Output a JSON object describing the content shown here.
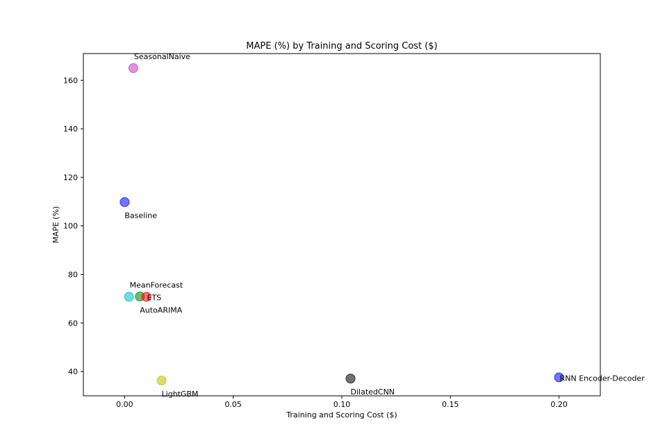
{
  "chart_data": {
    "type": "scatter",
    "title": "MAPE (%) by Training and Scoring Cost ($)",
    "xlabel": "Training and Scoring Cost ($)",
    "ylabel": "MAPE (%)",
    "xlim": [
      -0.019,
      0.219
    ],
    "ylim": [
      30,
      171
    ],
    "x_ticks": [
      0.0,
      0.05,
      0.1,
      0.15,
      0.2
    ],
    "x_tick_labels": [
      "0.00",
      "0.05",
      "0.10",
      "0.15",
      "0.20"
    ],
    "y_ticks": [
      40,
      60,
      80,
      100,
      120,
      140,
      160
    ],
    "y_tick_labels": [
      "40",
      "60",
      "80",
      "100",
      "120",
      "140",
      "160"
    ],
    "grid": false,
    "points": [
      {
        "label": "SeasonalNaive",
        "x": 0.004,
        "y": 165.0,
        "color": "#bf3fbf",
        "label_pos": "above-right"
      },
      {
        "label": "Baseline",
        "x": 0.0,
        "y": 109.8,
        "color": "#0000ff",
        "label_pos": "below-right"
      },
      {
        "label": "MeanForecast",
        "x": 0.002,
        "y": 70.8,
        "color": "#00bfbf",
        "label_pos": "above-right"
      },
      {
        "label": "AutoARIMA",
        "x": 0.007,
        "y": 70.9,
        "color": "#008000",
        "label_pos": "below-right"
      },
      {
        "label": "ETS",
        "x": 0.01,
        "y": 70.8,
        "color": "#ff0000",
        "label_pos": "right"
      },
      {
        "label": "LightGBM",
        "x": 0.017,
        "y": 36.3,
        "color": "#bfbf00",
        "label_pos": "below-right"
      },
      {
        "label": "DilatedCNN",
        "x": 0.104,
        "y": 37.1,
        "color": "#000000",
        "label_pos": "below-right"
      },
      {
        "label": "RNN Encoder-Decoder",
        "x": 0.2,
        "y": 37.6,
        "color": "#0000ff",
        "label_pos": "right"
      }
    ]
  }
}
